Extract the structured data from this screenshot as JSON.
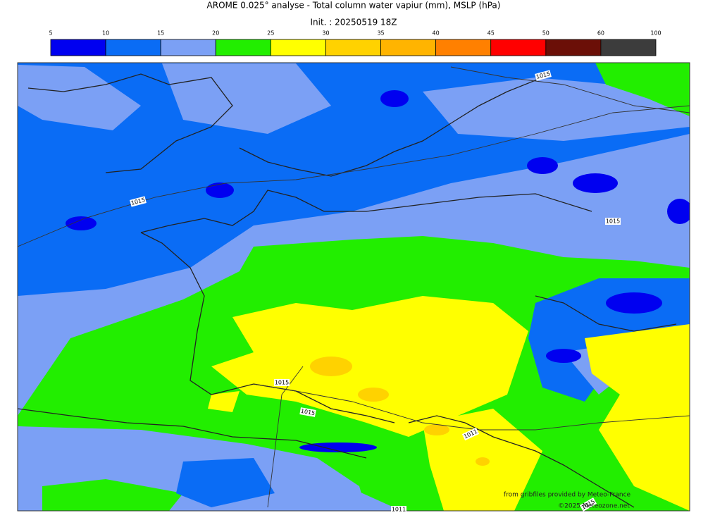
{
  "title": "AROME 0.025° analyse - Total column water vapiur (mm), MSLP (hPa)",
  "subtitle": "Init. : 20250519 18Z",
  "colorbar": {
    "ticks": [
      5,
      10,
      15,
      20,
      25,
      30,
      35,
      40,
      45,
      50,
      60,
      100
    ],
    "colors": [
      "#0000f0",
      "#0a6cf5",
      "#7ba0f5",
      "#22ee00",
      "#ffff00",
      "#ffd200",
      "#ffb400",
      "#ff8000",
      "#ff0000",
      "#6b0f07",
      "#3c3c3c"
    ]
  },
  "contour_labels": [
    "1015",
    "1015",
    "1015",
    "1015",
    "1015",
    "1011",
    "1011",
    "1015"
  ],
  "credits": [
    "from gribfiles provided by Meteo-France",
    "©2025 Meteozone.net"
  ]
}
